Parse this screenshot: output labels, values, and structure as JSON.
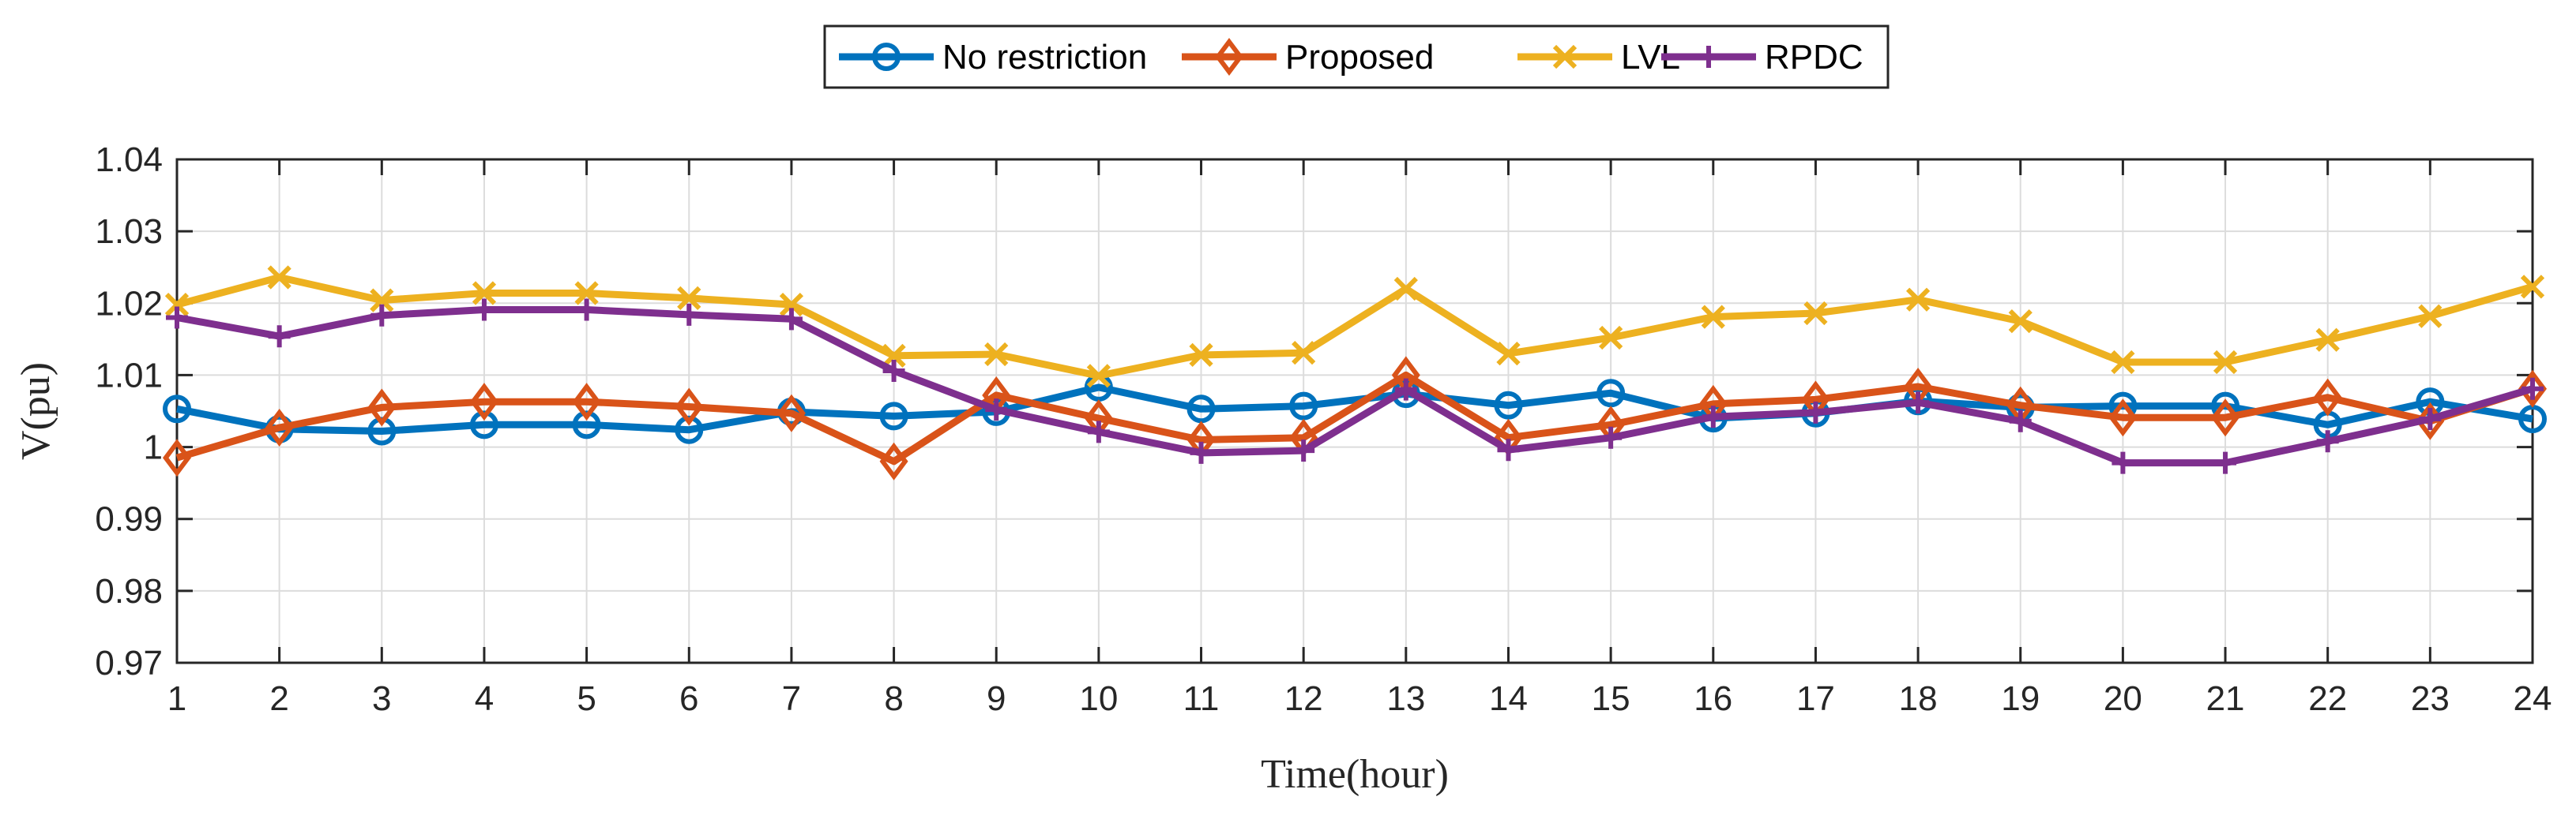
{
  "chart_data": {
    "type": "line",
    "title": "",
    "xlabel": "Time(hour)",
    "ylabel": "V(pu)",
    "x": [
      1,
      2,
      3,
      4,
      5,
      6,
      7,
      8,
      9,
      10,
      11,
      12,
      13,
      14,
      15,
      16,
      17,
      18,
      19,
      20,
      21,
      22,
      23,
      24
    ],
    "xticks": [
      "1",
      "2",
      "3",
      "4",
      "5",
      "6",
      "7",
      "8",
      "9",
      "10",
      "11",
      "12",
      "13",
      "14",
      "15",
      "16",
      "17",
      "18",
      "19",
      "20",
      "21",
      "22",
      "23",
      "24"
    ],
    "yticks": [
      "0.97",
      "0.98",
      "0.99",
      "1",
      "1.01",
      "1.02",
      "1.03",
      "1.04"
    ],
    "xlim": [
      1,
      24
    ],
    "ylim": [
      0.97,
      1.04
    ],
    "grid": true,
    "legend_position": "top-center",
    "series": [
      {
        "name": "No restriction",
        "color": "#0072BD",
        "marker": "circle",
        "values": [
          1.0053,
          1.0025,
          1.0022,
          1.0031,
          1.0031,
          1.0024,
          1.0049,
          1.0043,
          1.0049,
          1.0083,
          1.0053,
          1.0057,
          1.0074,
          1.0058,
          1.0075,
          1.004,
          1.0047,
          1.0064,
          1.0055,
          1.0057,
          1.0057,
          1.0031,
          1.0063,
          1.0039
        ]
      },
      {
        "name": "Proposed",
        "color": "#D95319",
        "marker": "diamond",
        "values": [
          0.9985,
          1.0027,
          1.0055,
          1.0063,
          1.0063,
          1.0056,
          1.0047,
          0.998,
          1.0072,
          1.004,
          1.001,
          1.0013,
          1.01,
          1.0013,
          1.0031,
          1.006,
          1.0066,
          1.0084,
          1.0058,
          1.0041,
          1.0041,
          1.0069,
          1.0036,
          1.0081
        ]
      },
      {
        "name": "LVL",
        "color": "#EDB120",
        "marker": "x",
        "values": [
          1.0198,
          1.0236,
          1.0204,
          1.0214,
          1.0214,
          1.0207,
          1.0198,
          1.0127,
          1.0129,
          1.0099,
          1.0128,
          1.0131,
          1.022,
          1.013,
          1.0152,
          1.0181,
          1.0186,
          1.0205,
          1.0175,
          1.0118,
          1.0118,
          1.0149,
          1.0182,
          1.0223
        ]
      },
      {
        "name": "RPDC",
        "color": "#7E2F8E",
        "marker": "plus",
        "values": [
          1.018,
          1.0154,
          1.0183,
          1.0191,
          1.0191,
          1.0184,
          1.0178,
          1.0106,
          1.0052,
          1.0021,
          0.9992,
          0.9995,
          1.008,
          0.9996,
          1.0013,
          1.0042,
          1.0048,
          1.0062,
          1.0036,
          0.9978,
          0.9978,
          1.0008,
          1.0039,
          1.0081
        ]
      }
    ]
  }
}
